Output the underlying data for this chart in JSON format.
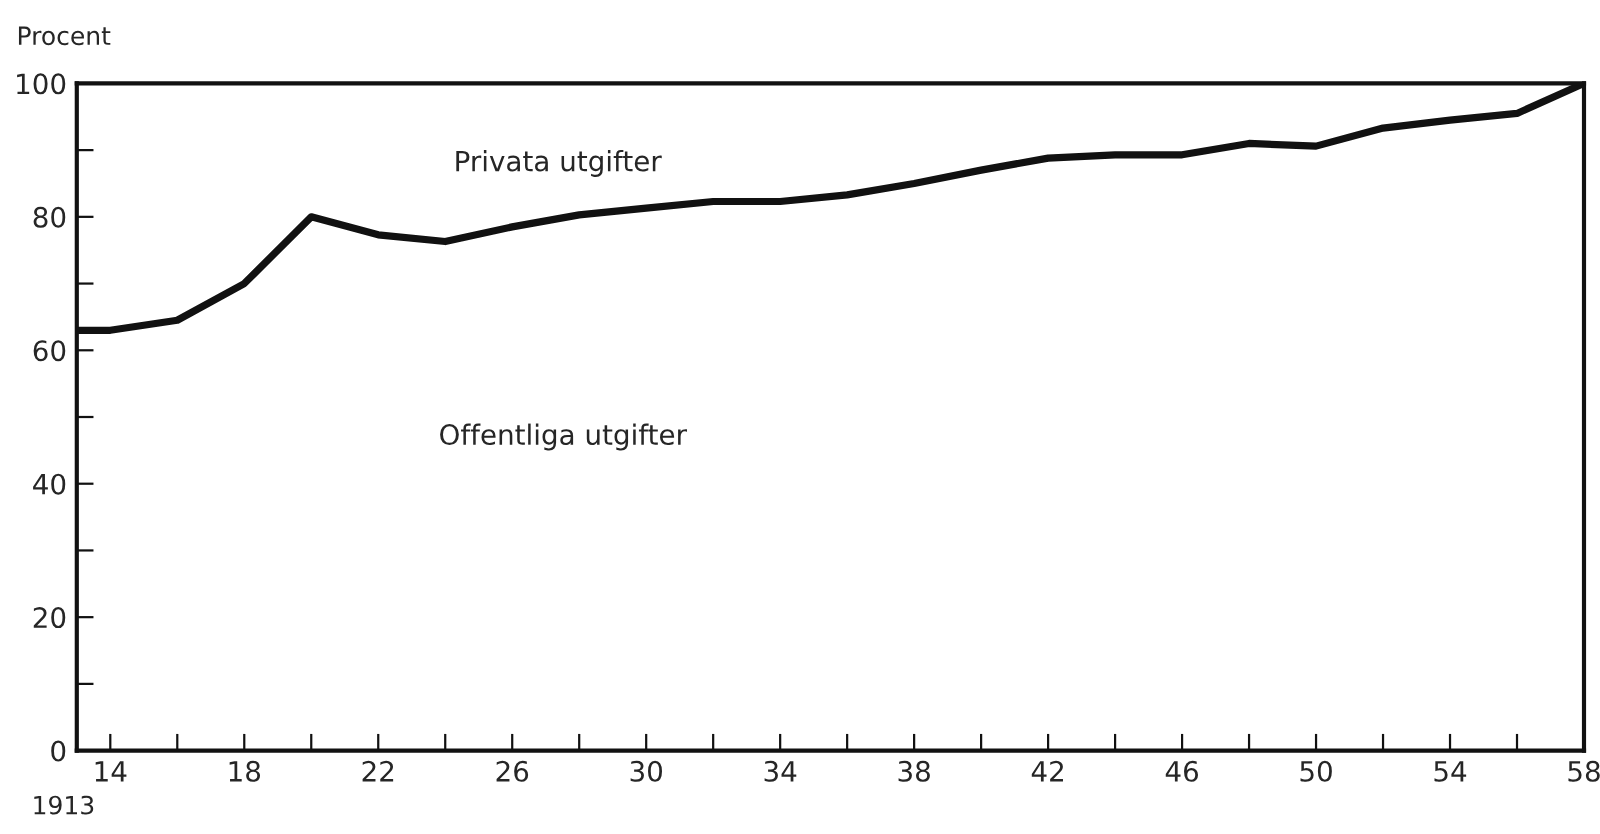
{
  "chart_data": {
    "type": "line",
    "ylabel": "Procent",
    "x": [
      13,
      14,
      16,
      18,
      20,
      22,
      24,
      26,
      28,
      30,
      32,
      34,
      36,
      38,
      40,
      42,
      44,
      46,
      48,
      50,
      52,
      54,
      56,
      58
    ],
    "series": [
      {
        "color": "#111111",
        "values": [
          63,
          63,
          64.5,
          70,
          80,
          77.3,
          76.3,
          78.5,
          80.3,
          81.3,
          82.3,
          82.3,
          83.3,
          85,
          87,
          88.8,
          89.3,
          89.3,
          91,
          90.6,
          93.3,
          94.5,
          95.5,
          100
        ]
      }
    ],
    "xlim": [
      13,
      58
    ],
    "ylim": [
      0,
      100
    ],
    "xticks": [
      14,
      {
        "value": 16,
        "label": null
      },
      18,
      {
        "value": 20,
        "label": null
      },
      22,
      {
        "value": 24,
        "label": null
      },
      26,
      {
        "value": 28,
        "label": null
      },
      30,
      {
        "value": 32,
        "label": null
      },
      34,
      {
        "value": 36,
        "label": null
      },
      38,
      {
        "value": 40,
        "label": null
      },
      42,
      {
        "value": 44,
        "label": null
      },
      46,
      {
        "value": 48,
        "label": null
      },
      50,
      {
        "value": 52,
        "label": null
      },
      54,
      {
        "value": 56,
        "label": null
      },
      58
    ],
    "yticks": [
      0,
      {
        "value": 10,
        "label": null
      },
      20,
      {
        "value": 30,
        "label": null
      },
      40,
      {
        "value": 50,
        "label": null
      },
      60,
      {
        "value": 70,
        "label": null
      },
      80,
      {
        "value": 90,
        "label": null
      },
      100
    ],
    "annotations": [
      "Privata utgifter",
      "Offentliga utgifter",
      "1913"
    ],
    "grid": false,
    "legend": false,
    "marker": "none",
    "line_style": "solid"
  }
}
